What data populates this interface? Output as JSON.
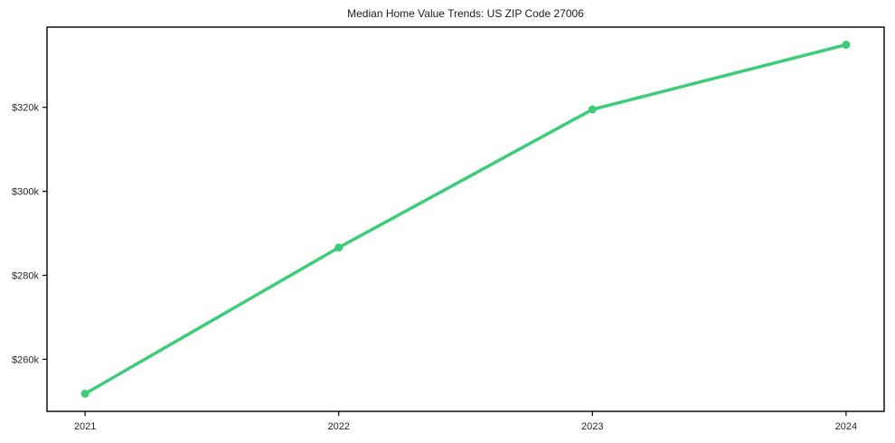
{
  "page": {
    "background_color": "#ffffff"
  },
  "chart_data": {
    "type": "line",
    "title": "Median Home Value Trends: US ZIP Code 27006",
    "x": [
      2021,
      2022,
      2023,
      2024
    ],
    "x_tick_labels": [
      "2021",
      "2022",
      "2023",
      "2024"
    ],
    "values": [
      251800,
      286600,
      319500,
      334900
    ],
    "y_ticks": [
      260000,
      280000,
      300000,
      320000
    ],
    "y_tick_labels": [
      "$260k",
      "$280k",
      "$300k",
      "$320k"
    ],
    "xlim": [
      2020.85,
      2024.15
    ],
    "ylim": [
      247600,
      339100
    ],
    "xlabel": "",
    "ylabel": "",
    "grid": false,
    "legend": false,
    "line_color": "#3dcc78",
    "marker": "circle",
    "axis_color": "#000000",
    "tick_label_color": "#262626",
    "title_color": "#1a1a1a"
  }
}
